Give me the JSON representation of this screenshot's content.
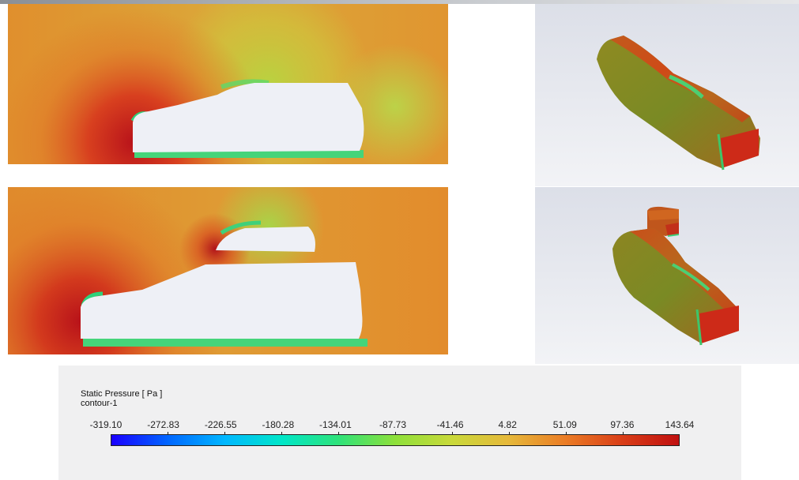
{
  "legend": {
    "title": "Static Pressure [ Pa ]",
    "subtitle": "contour-1",
    "tick_labels": [
      "-319.10",
      "-272.83",
      "-226.55",
      "-180.28",
      "-134.01",
      "-87.73",
      "-41.46",
      "4.82",
      "51.09",
      "97.36",
      "143.64"
    ],
    "range": [
      -319.1,
      143.64
    ],
    "colormap": [
      "#1a00ff",
      "#0066ff",
      "#00b7ff",
      "#00e6c8",
      "#2ee27a",
      "#8ee03a",
      "#c9d93a",
      "#e6b83a",
      "#ea7c25",
      "#d93e18",
      "#c01010"
    ]
  },
  "colors": {
    "ambient_field": "#dba33a",
    "stagnation": "#c7231a",
    "low_pressure": "#34d07a",
    "car_body": "#eef0f6",
    "view_background": "#e8eaf0"
  }
}
